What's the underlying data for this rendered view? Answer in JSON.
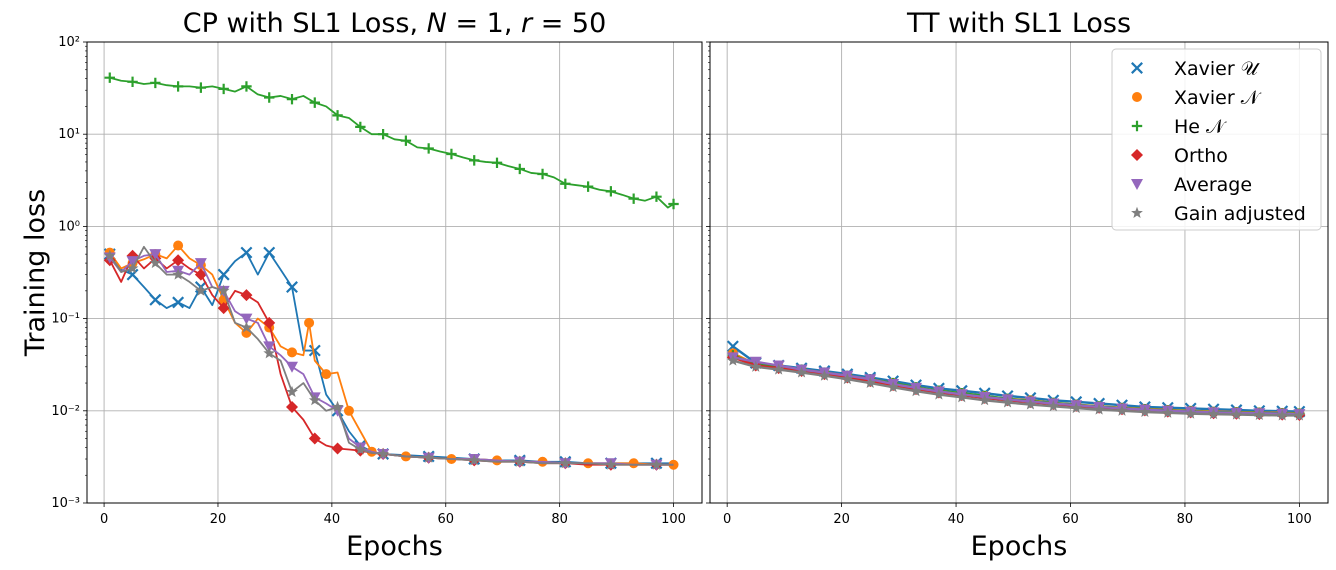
{
  "chart_data": [
    {
      "type": "line",
      "title": "CP with SL1 Loss, N = 1, r = 50",
      "title_parts": [
        "CP with SL1 Loss, ",
        "N",
        " = 1, ",
        "r",
        " = 50"
      ],
      "xlabel": "Epochs",
      "ylabel": "Training  loss",
      "yscale": "log",
      "xlim": [
        -3,
        105
      ],
      "ylim": [
        0.001,
        100
      ],
      "xticks": [
        "0",
        "20",
        "40",
        "60",
        "80",
        "100"
      ],
      "yticks": [
        "10⁻³",
        "10⁻²",
        "10⁻¹",
        "10⁰",
        "10¹",
        "10²"
      ],
      "grid": true,
      "series": [
        {
          "name": "Xavier 𝒰",
          "color": "#1f77b4",
          "marker": "x",
          "x": [
            1,
            3,
            5,
            7,
            9,
            11,
            13,
            15,
            17,
            19,
            21,
            23,
            25,
            27,
            29,
            31,
            33,
            35,
            37,
            39,
            41,
            43,
            45,
            47,
            49,
            53,
            57,
            61,
            65,
            69,
            73,
            77,
            81,
            85,
            89,
            93,
            97,
            100
          ],
          "y": [
            0.5,
            0.34,
            0.3,
            0.22,
            0.16,
            0.13,
            0.15,
            0.13,
            0.22,
            0.14,
            0.3,
            0.42,
            0.52,
            0.3,
            0.52,
            0.34,
            0.22,
            0.045,
            0.045,
            0.015,
            0.01,
            0.006,
            0.0042,
            0.0036,
            0.0034,
            0.0033,
            0.0032,
            0.0031,
            0.003,
            0.0029,
            0.0029,
            0.0028,
            0.0028,
            0.0027,
            0.0027,
            0.0027,
            0.0027,
            0.0027
          ]
        },
        {
          "name": "Xavier 𝒩",
          "color": "#ff7f0e",
          "marker": "o",
          "x": [
            1,
            3,
            5,
            7,
            9,
            11,
            13,
            15,
            17,
            19,
            21,
            23,
            25,
            27,
            29,
            31,
            33,
            35,
            36,
            37,
            39,
            41,
            43,
            45,
            47,
            49,
            53,
            57,
            61,
            65,
            69,
            73,
            77,
            81,
            85,
            89,
            93,
            97,
            100
          ],
          "y": [
            0.52,
            0.35,
            0.4,
            0.44,
            0.5,
            0.45,
            0.62,
            0.45,
            0.38,
            0.3,
            0.16,
            0.09,
            0.07,
            0.1,
            0.08,
            0.05,
            0.043,
            0.04,
            0.09,
            0.035,
            0.025,
            0.026,
            0.01,
            0.006,
            0.0036,
            0.0034,
            0.0032,
            0.0031,
            0.003,
            0.003,
            0.0029,
            0.0028,
            0.0028,
            0.0027,
            0.0027,
            0.0027,
            0.0027,
            0.0026,
            0.0026
          ]
        },
        {
          "name": "He 𝒩",
          "color": "#2ca02c",
          "marker": "+",
          "x": [
            1,
            3,
            5,
            7,
            9,
            11,
            13,
            15,
            17,
            19,
            21,
            23,
            25,
            27,
            29,
            31,
            33,
            35,
            37,
            39,
            41,
            43,
            45,
            47,
            49,
            51,
            53,
            55,
            57,
            59,
            61,
            63,
            65,
            67,
            69,
            71,
            73,
            75,
            77,
            79,
            81,
            83,
            85,
            87,
            89,
            91,
            93,
            95,
            97,
            99,
            100
          ],
          "y": [
            41,
            38,
            37,
            35,
            36,
            34,
            33,
            33,
            32,
            33,
            31,
            29,
            33,
            27,
            25,
            26,
            24,
            26,
            22,
            20,
            16,
            15,
            12,
            10,
            10,
            8.8,
            8.5,
            7.2,
            7,
            6.5,
            6.1,
            5.6,
            5.2,
            5,
            4.9,
            4.5,
            4.2,
            3.8,
            3.7,
            3.4,
            2.9,
            2.8,
            2.7,
            2.5,
            2.4,
            2.2,
            2.0,
            1.9,
            2.1,
            1.6,
            1.75
          ]
        },
        {
          "name": "Ortho",
          "color": "#d62728",
          "marker": "D",
          "x": [
            1,
            3,
            5,
            7,
            9,
            11,
            13,
            15,
            17,
            19,
            21,
            23,
            25,
            27,
            29,
            31,
            33,
            35,
            37,
            39,
            41,
            43,
            45,
            47,
            49,
            53,
            57,
            61,
            65,
            69,
            73,
            77,
            81,
            85,
            89,
            93,
            97,
            100
          ],
          "y": [
            0.43,
            0.25,
            0.48,
            0.35,
            0.45,
            0.35,
            0.43,
            0.35,
            0.3,
            0.18,
            0.13,
            0.2,
            0.18,
            0.15,
            0.09,
            0.025,
            0.011,
            0.008,
            0.005,
            0.0042,
            0.0039,
            0.0038,
            0.0037,
            0.0035,
            0.0034,
            0.0032,
            0.0031,
            0.003,
            0.0029,
            0.0028,
            0.0028,
            0.0027,
            0.0027,
            0.0026,
            0.0026,
            0.0026,
            0.0026,
            0.0026
          ]
        },
        {
          "name": "Average",
          "color": "#9467bd",
          "marker": "v",
          "x": [
            1,
            3,
            5,
            7,
            9,
            11,
            13,
            15,
            17,
            19,
            21,
            23,
            25,
            27,
            29,
            31,
            33,
            35,
            37,
            39,
            41,
            43,
            45,
            47,
            49,
            53,
            57,
            61,
            65,
            69,
            73,
            77,
            81,
            85,
            89,
            93,
            97,
            100
          ],
          "y": [
            0.46,
            0.32,
            0.42,
            0.48,
            0.5,
            0.32,
            0.33,
            0.3,
            0.4,
            0.22,
            0.2,
            0.12,
            0.1,
            0.09,
            0.05,
            0.04,
            0.03,
            0.025,
            0.014,
            0.012,
            0.01,
            0.005,
            0.004,
            0.0036,
            0.0034,
            0.0032,
            0.0031,
            0.003,
            0.003,
            0.0029,
            0.0028,
            0.0028,
            0.0027,
            0.0027,
            0.0027,
            0.0026,
            0.0026,
            0.0026
          ]
        },
        {
          "name": "Gain adjusted",
          "color": "#7f7f7f",
          "marker": "*",
          "x": [
            1,
            3,
            5,
            7,
            9,
            11,
            13,
            15,
            17,
            19,
            21,
            23,
            25,
            27,
            29,
            31,
            33,
            35,
            37,
            39,
            41,
            43,
            45,
            47,
            49,
            53,
            57,
            61,
            65,
            69,
            73,
            77,
            81,
            85,
            89,
            93,
            97,
            100
          ],
          "y": [
            0.48,
            0.32,
            0.35,
            0.6,
            0.4,
            0.3,
            0.3,
            0.25,
            0.2,
            0.22,
            0.2,
            0.09,
            0.08,
            0.06,
            0.042,
            0.035,
            0.016,
            0.02,
            0.013,
            0.01,
            0.011,
            0.0045,
            0.0038,
            0.0035,
            0.0034,
            0.0032,
            0.0031,
            0.003,
            0.0029,
            0.0028,
            0.0028,
            0.0027,
            0.0027,
            0.0027,
            0.0026,
            0.0026,
            0.0026,
            0.0026
          ]
        }
      ]
    },
    {
      "type": "line",
      "title": "TT with SL1 Loss",
      "xlabel": "Epochs",
      "ylabel": "",
      "yscale": "log",
      "xlim": [
        -3,
        105
      ],
      "ylim": [
        0.001,
        100
      ],
      "xticks": [
        "0",
        "20",
        "40",
        "60",
        "80",
        "100"
      ],
      "grid": true,
      "legend_position": "top-right",
      "series": [
        {
          "name": "Xavier 𝒰",
          "color": "#1f77b4",
          "marker": "x",
          "x": [
            1,
            5,
            9,
            13,
            17,
            21,
            25,
            29,
            33,
            37,
            41,
            45,
            49,
            53,
            57,
            61,
            65,
            69,
            73,
            77,
            81,
            85,
            89,
            93,
            97,
            100
          ],
          "y": [
            0.05,
            0.033,
            0.031,
            0.029,
            0.027,
            0.025,
            0.023,
            0.021,
            0.019,
            0.0175,
            0.0165,
            0.0155,
            0.0145,
            0.0138,
            0.013,
            0.0125,
            0.012,
            0.0115,
            0.011,
            0.0108,
            0.0106,
            0.0104,
            0.0102,
            0.01,
            0.0099,
            0.0098
          ]
        },
        {
          "name": "Xavier 𝒩",
          "color": "#ff7f0e",
          "marker": "o",
          "x": [
            1,
            5,
            9,
            13,
            17,
            21,
            25,
            29,
            33,
            37,
            41,
            45,
            49,
            53,
            57,
            61,
            65,
            69,
            73,
            77,
            81,
            85,
            89,
            93,
            97,
            100
          ],
          "y": [
            0.042,
            0.032,
            0.03,
            0.028,
            0.026,
            0.024,
            0.022,
            0.02,
            0.018,
            0.0165,
            0.0155,
            0.0145,
            0.0135,
            0.013,
            0.0122,
            0.0117,
            0.0112,
            0.0108,
            0.0105,
            0.0102,
            0.01,
            0.0098,
            0.0097,
            0.0096,
            0.0095,
            0.0094
          ]
        },
        {
          "name": "He 𝒩",
          "color": "#2ca02c",
          "marker": "+",
          "x": [
            1,
            5,
            9,
            13,
            17,
            21,
            25,
            29,
            33,
            37,
            41,
            45,
            49,
            53,
            57,
            61,
            65,
            69,
            73,
            77,
            81,
            85,
            89,
            93,
            97,
            100
          ],
          "y": [
            0.04,
            0.032,
            0.03,
            0.028,
            0.026,
            0.024,
            0.022,
            0.02,
            0.018,
            0.0165,
            0.0155,
            0.0145,
            0.0135,
            0.0128,
            0.0122,
            0.0116,
            0.0111,
            0.0107,
            0.0104,
            0.0101,
            0.0099,
            0.0097,
            0.0096,
            0.0095,
            0.0094,
            0.0093
          ]
        },
        {
          "name": "Ortho",
          "color": "#d62728",
          "marker": "D",
          "x": [
            1,
            5,
            9,
            13,
            17,
            21,
            25,
            29,
            33,
            37,
            41,
            45,
            49,
            53,
            57,
            61,
            65,
            69,
            73,
            77,
            81,
            85,
            89,
            93,
            97,
            100
          ],
          "y": [
            0.038,
            0.031,
            0.029,
            0.027,
            0.025,
            0.023,
            0.021,
            0.019,
            0.0172,
            0.0158,
            0.0148,
            0.0138,
            0.013,
            0.0124,
            0.0118,
            0.0113,
            0.0108,
            0.0104,
            0.0101,
            0.0098,
            0.0096,
            0.0094,
            0.0093,
            0.0092,
            0.0091,
            0.009
          ]
        },
        {
          "name": "Average",
          "color": "#9467bd",
          "marker": "v",
          "x": [
            1,
            5,
            9,
            13,
            17,
            21,
            25,
            29,
            33,
            37,
            41,
            45,
            49,
            53,
            57,
            61,
            65,
            69,
            73,
            77,
            81,
            85,
            89,
            93,
            97,
            100
          ],
          "y": [
            0.038,
            0.034,
            0.031,
            0.028,
            0.026,
            0.024,
            0.022,
            0.0195,
            0.0177,
            0.0162,
            0.0151,
            0.0141,
            0.0133,
            0.0126,
            0.012,
            0.0115,
            0.011,
            0.0106,
            0.0103,
            0.01,
            0.0098,
            0.0096,
            0.0095,
            0.0094,
            0.0093,
            0.0092
          ]
        },
        {
          "name": "Gain adjusted",
          "color": "#7f7f7f",
          "marker": "*",
          "x": [
            1,
            5,
            9,
            13,
            17,
            21,
            25,
            29,
            33,
            37,
            41,
            45,
            49,
            53,
            57,
            61,
            65,
            69,
            73,
            77,
            81,
            85,
            89,
            93,
            97,
            100
          ],
          "y": [
            0.035,
            0.03,
            0.028,
            0.026,
            0.024,
            0.022,
            0.02,
            0.018,
            0.0163,
            0.015,
            0.014,
            0.013,
            0.0123,
            0.0117,
            0.0112,
            0.0107,
            0.0103,
            0.01,
            0.0097,
            0.0095,
            0.0093,
            0.0092,
            0.0091,
            0.009,
            0.0089,
            0.0089
          ]
        }
      ]
    }
  ]
}
